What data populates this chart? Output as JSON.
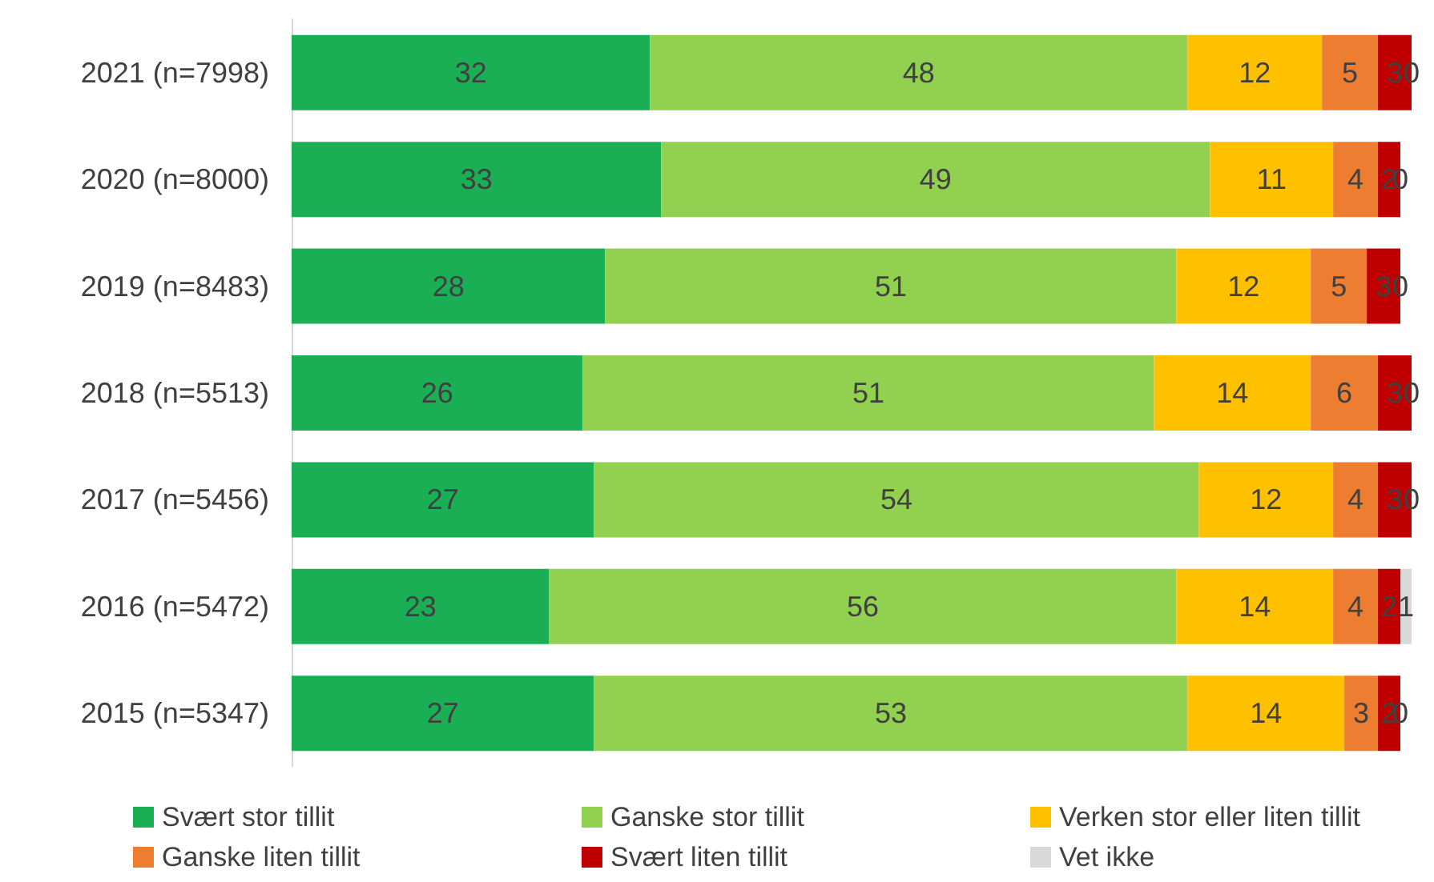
{
  "chart_data": {
    "type": "bar",
    "orientation": "horizontal",
    "stacked": true,
    "data_labels": true,
    "legend": "bottom",
    "categories": [
      "2021 (n=7998)",
      "2020 (n=8000)",
      "2019 (n=8483)",
      "2018 (n=5513)",
      "2017 (n=5456)",
      "2016 (n=5472)",
      "2015 (n=5347)"
    ],
    "series": [
      {
        "name": "Svært stor tillit",
        "color": "#1aaf54",
        "values": [
          32,
          33,
          28,
          26,
          27,
          23,
          27
        ]
      },
      {
        "name": "Ganske stor tillit",
        "color": "#92d050",
        "values": [
          48,
          49,
          51,
          51,
          54,
          56,
          53
        ]
      },
      {
        "name": "Verken stor eller liten tillit",
        "color": "#ffc000",
        "values": [
          12,
          11,
          12,
          14,
          12,
          14,
          14
        ]
      },
      {
        "name": "Ganske liten tillit",
        "color": "#ed7d31",
        "values": [
          5,
          4,
          5,
          6,
          4,
          4,
          3
        ]
      },
      {
        "name": "Svært liten tillit",
        "color": "#c00000",
        "values": [
          3,
          2,
          3,
          3,
          3,
          2,
          2
        ]
      },
      {
        "name": "Vet ikke",
        "color": "#d9d9d9",
        "values": [
          0,
          0,
          0,
          0,
          0,
          1,
          0
        ]
      }
    ]
  }
}
